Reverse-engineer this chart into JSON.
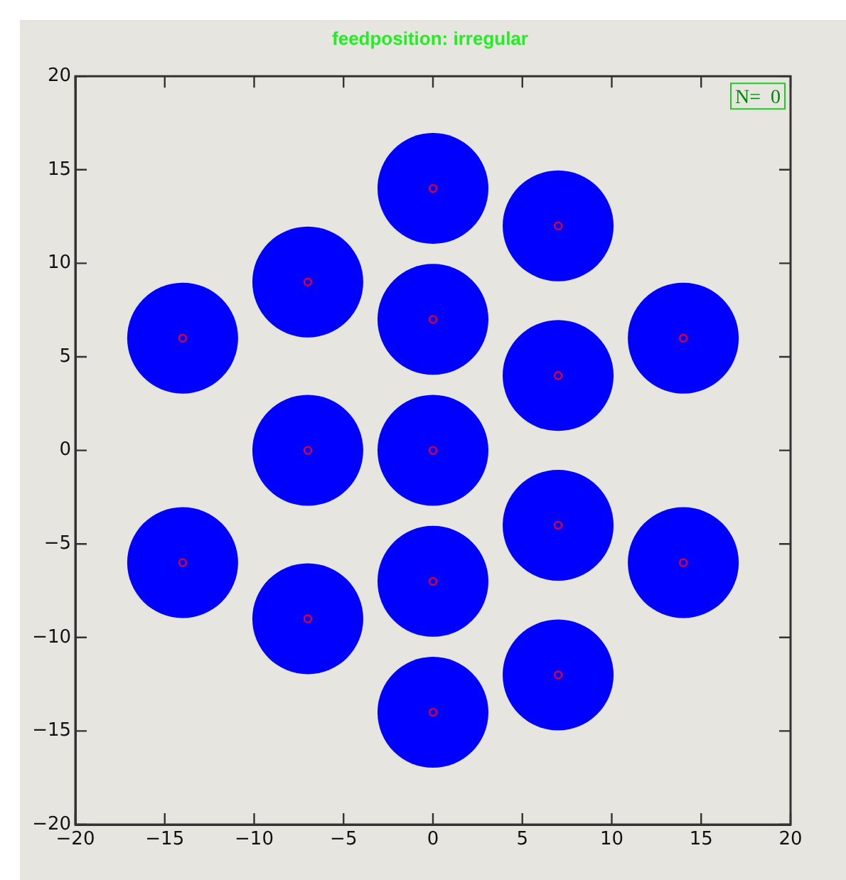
{
  "chart_data": {
    "type": "bubble",
    "title": "feedposition: irregular",
    "annotations": [
      "N=  0"
    ],
    "x": [
      0,
      7,
      -7,
      0,
      -14,
      14,
      7,
      -7,
      0,
      7,
      -14,
      14,
      0,
      -7,
      7,
      0
    ],
    "xlim": [
      -20,
      20
    ],
    "xticks": [
      -20,
      -15,
      -10,
      -5,
      0,
      5,
      10,
      15,
      20
    ],
    "ylim": [
      -20,
      20
    ],
    "yticks": [
      -20,
      -15,
      -10,
      -5,
      0,
      5,
      10,
      15,
      20
    ],
    "grid": false,
    "legend": false,
    "series": [
      {
        "color": "#0000ff",
        "values": [
          14,
          12,
          9,
          7,
          6,
          6,
          4,
          0,
          0,
          -4,
          -6,
          -6,
          -7,
          -9,
          -12,
          -14
        ],
        "sizes": [
          1,
          1,
          1,
          1,
          1,
          1,
          1,
          1,
          1,
          1,
          1,
          1,
          1,
          1,
          1,
          1
        ]
      },
      {
        "type": "scatter",
        "color": "#dd0033",
        "marker": "circle",
        "values": [
          14,
          12,
          9,
          7,
          6,
          6,
          4,
          0,
          0,
          -4,
          -6,
          -6,
          -7,
          -9,
          -12,
          -14
        ]
      }
    ]
  }
}
